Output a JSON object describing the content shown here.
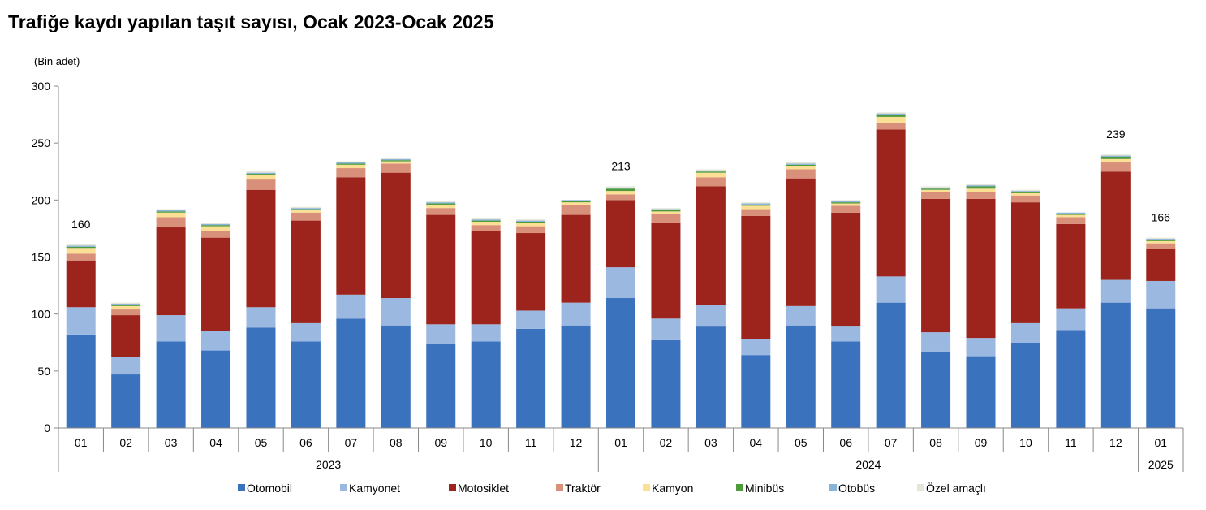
{
  "chart_data": {
    "type": "bar",
    "stacked": true,
    "title": "Trafiğe kaydı yapılan taşıt sayısı, Ocak 2023-Ocak 2025",
    "unit_label": "(Bin adet)",
    "ylim": [
      0,
      300
    ],
    "yticks": [
      0,
      50,
      100,
      150,
      200,
      250,
      300
    ],
    "grid": false,
    "legend_position": "bottom",
    "categories": [
      "01",
      "02",
      "03",
      "04",
      "05",
      "06",
      "07",
      "08",
      "09",
      "10",
      "11",
      "12",
      "01",
      "02",
      "03",
      "04",
      "05",
      "06",
      "07",
      "08",
      "09",
      "10",
      "11",
      "12",
      "01"
    ],
    "year_groups": [
      {
        "label": "2023",
        "count": 12
      },
      {
        "label": "2024",
        "count": 12
      },
      {
        "label": "2025",
        "count": 1
      }
    ],
    "totals_labels": [
      {
        "index": 0,
        "text": "160"
      },
      {
        "index": 12,
        "text": "213"
      },
      {
        "index": 23,
        "text": "239"
      },
      {
        "index": 24,
        "text": "166"
      }
    ],
    "series": [
      {
        "name": "Otomobil",
        "color": "#3a72bd",
        "values": [
          82,
          47,
          76,
          68,
          88,
          76,
          96,
          90,
          74,
          76,
          87,
          90,
          114,
          77,
          89,
          64,
          90,
          76,
          110,
          67,
          63,
          75,
          86,
          110,
          105
        ]
      },
      {
        "name": "Kamyonet",
        "color": "#9bb8e0",
        "values": [
          24,
          15,
          23,
          17,
          18,
          16,
          21,
          24,
          17,
          15,
          16,
          20,
          27,
          19,
          19,
          14,
          17,
          13,
          23,
          17,
          16,
          17,
          19,
          20,
          24
        ]
      },
      {
        "name": "Motosiklet",
        "color": "#9c241c",
        "values": [
          41,
          37,
          77,
          82,
          103,
          90,
          103,
          110,
          96,
          82,
          68,
          77,
          59,
          84,
          104,
          108,
          112,
          100,
          129,
          117,
          122,
          106,
          74,
          95,
          28
        ]
      },
      {
        "name": "Traktör",
        "color": "#d9907a",
        "values": [
          6,
          5,
          9,
          6,
          9,
          7,
          8,
          8,
          6,
          5,
          6,
          9,
          5,
          8,
          8,
          6,
          8,
          6,
          6,
          6,
          6,
          6,
          6,
          8,
          5
        ]
      },
      {
        "name": "Kamyon",
        "color": "#fbdf94",
        "values": [
          5,
          3,
          4,
          4,
          4,
          2,
          3,
          2,
          3,
          3,
          3,
          2,
          3,
          2,
          4,
          3,
          3,
          2,
          5,
          2,
          3,
          2,
          2,
          3,
          2
        ]
      },
      {
        "name": "Minibüs",
        "color": "#4f9a3a",
        "values": [
          1,
          1,
          1,
          1,
          1,
          1,
          1,
          1,
          1,
          1,
          1,
          1,
          2,
          1,
          1,
          1,
          1,
          1,
          2,
          1,
          2,
          1,
          1,
          2,
          1
        ]
      },
      {
        "name": "Otobüs",
        "color": "#88b4d8",
        "values": [
          1,
          1,
          1,
          1,
          1,
          1,
          1,
          1,
          1,
          1,
          1,
          1,
          1,
          1,
          1,
          1,
          1,
          1,
          1,
          1,
          1,
          1,
          1,
          1,
          1
        ]
      },
      {
        "name": "Özel amaçlı",
        "color": "#e6e6d8",
        "values": [
          1,
          1,
          1,
          1,
          1,
          1,
          1,
          1,
          1,
          1,
          1,
          0,
          1,
          1,
          1,
          1,
          1,
          1,
          1,
          1,
          1,
          1,
          0,
          1,
          1
        ]
      }
    ]
  }
}
